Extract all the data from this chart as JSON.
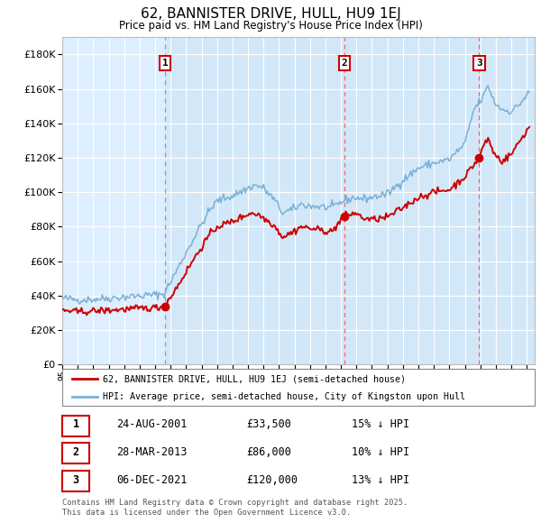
{
  "title": "62, BANNISTER DRIVE, HULL, HU9 1EJ",
  "subtitle": "Price paid vs. HM Land Registry's House Price Index (HPI)",
  "legend_line1": "62, BANNISTER DRIVE, HULL, HU9 1EJ (semi-detached house)",
  "legend_line2": "HPI: Average price, semi-detached house, City of Kingston upon Hull",
  "footer": "Contains HM Land Registry data © Crown copyright and database right 2025.\nThis data is licensed under the Open Government Licence v3.0.",
  "sales": [
    {
      "num": 1,
      "date": "24-AUG-2001",
      "price": 33500,
      "pct": "15%",
      "dir": "↓"
    },
    {
      "num": 2,
      "date": "28-MAR-2013",
      "price": 86000,
      "pct": "10%",
      "dir": "↓"
    },
    {
      "num": 3,
      "date": "06-DEC-2021",
      "price": 120000,
      "pct": "13%",
      "dir": "↓"
    }
  ],
  "sale_dates_decimal": [
    2001.644,
    2013.236,
    2021.922
  ],
  "sale_prices": [
    33500,
    86000,
    120000
  ],
  "vline1_color": "#999999",
  "vline23_color": "#ff6666",
  "ylim": [
    0,
    190000
  ],
  "yticks": [
    0,
    20000,
    40000,
    60000,
    80000,
    100000,
    120000,
    140000,
    160000,
    180000
  ],
  "hpi_color": "#7ab0d4",
  "price_color": "#cc0000",
  "bg_color": "#ddeeff",
  "stripe_color": "#cce0f0",
  "grid_color": "#ffffff",
  "start_year": 1995,
  "end_year": 2025
}
